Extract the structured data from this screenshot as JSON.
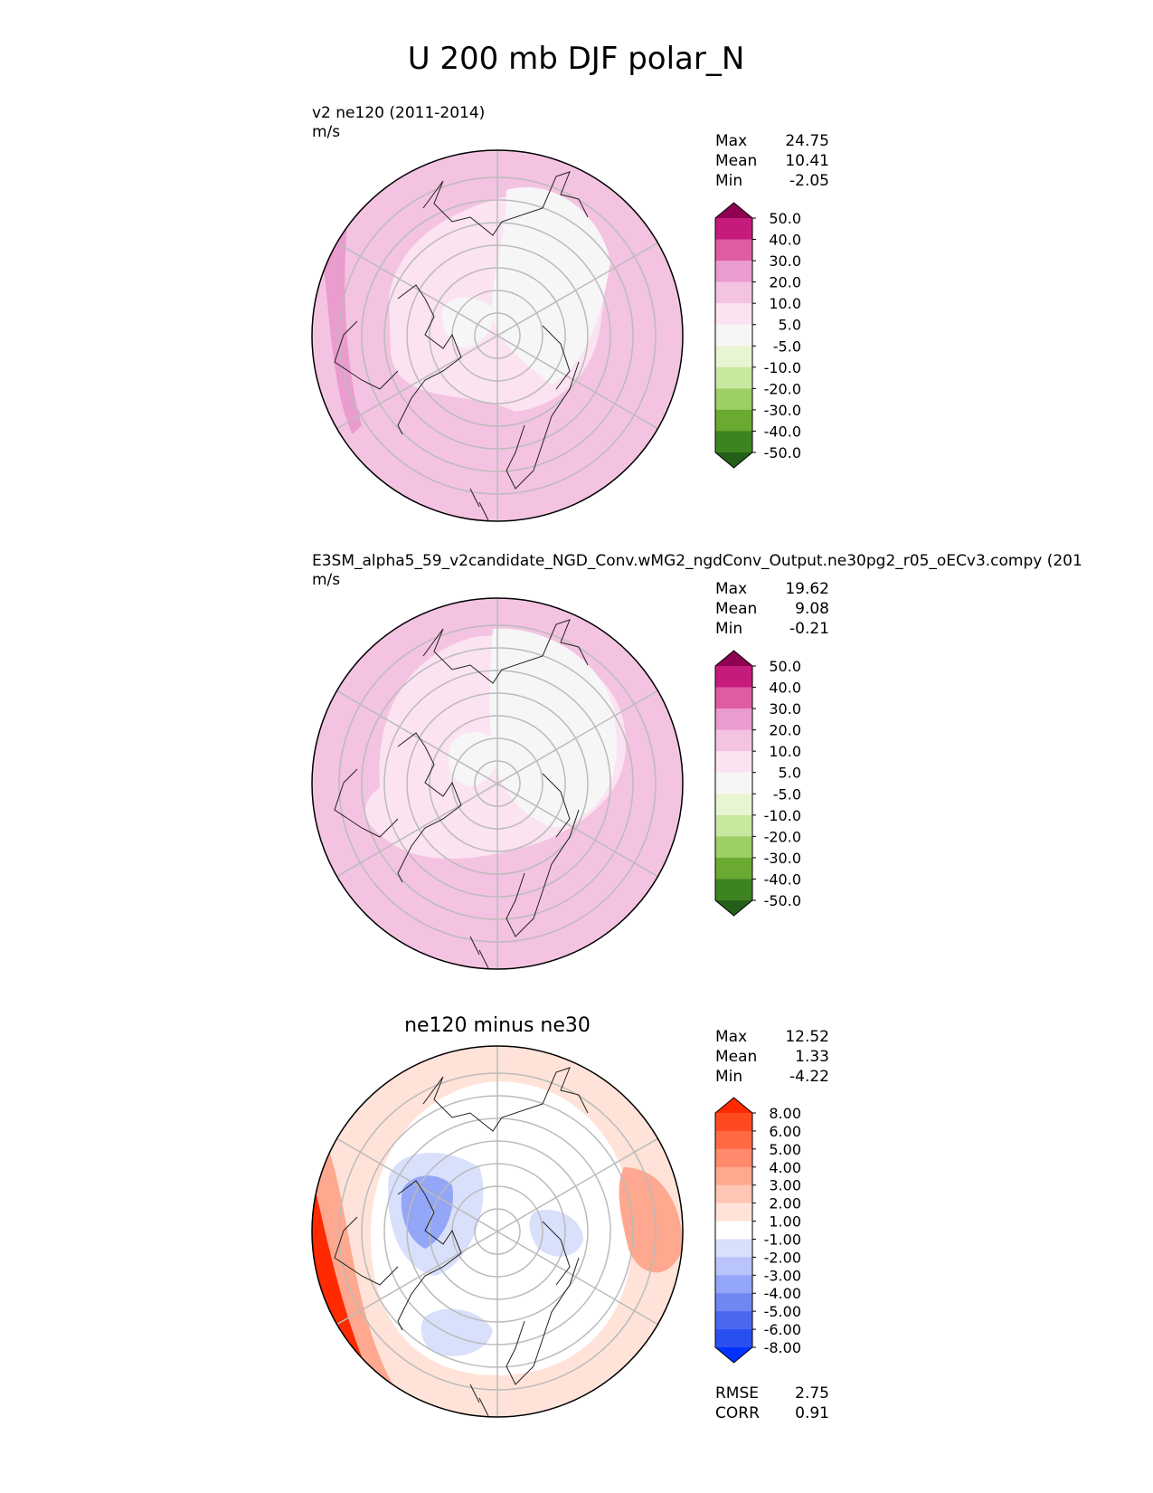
{
  "figure": {
    "title": "U 200 mb DJF polar_N"
  },
  "chart_data": [
    {
      "type": "heatmap",
      "projection": "north-polar-stereographic",
      "title_line1": "v2 ne120 (2011-2014)",
      "units": "m/s",
      "stats": [
        {
          "label": "Max",
          "value": "24.75"
        },
        {
          "label": "Mean",
          "value": "10.41"
        },
        {
          "label": "Min",
          "value": "-2.05"
        }
      ],
      "colorbar": {
        "levels": [
          "50.0",
          "40.0",
          "30.0",
          "20.0",
          "10.0",
          "5.0",
          "-5.0",
          "-10.0",
          "-20.0",
          "-30.0",
          "-40.0",
          "-50.0"
        ],
        "colors": [
          "#8e0152",
          "#c51b7d",
          "#de5ca2",
          "#ea9cce",
          "#f4c3e2",
          "#fbe3f1",
          "#f6f6f6",
          "#e8f5d2",
          "#c8e8a0",
          "#9ccf66",
          "#6aa932",
          "#3d8420",
          "#246019"
        ]
      },
      "field": {
        "background": "#f4c3e2",
        "regions": [
          {
            "level": "20.0",
            "color": "#ea9cce",
            "shape": "west-rim"
          },
          {
            "level": "5.0",
            "color": "#fbe3f1",
            "shape": "inner-ring"
          },
          {
            "level": "-5.0",
            "color": "#f6f6f6",
            "shape": "northeast-blob"
          }
        ]
      }
    },
    {
      "type": "heatmap",
      "projection": "north-polar-stereographic",
      "title_line1": "E3SM_alpha5_59_v2candidate_NGD_Conv.wMG2_ngdConv_Output.ne30pg2_r05_oECv3.compy (201",
      "units": "m/s",
      "stats": [
        {
          "label": "Max",
          "value": "19.62"
        },
        {
          "label": "Mean",
          "value": "9.08"
        },
        {
          "label": "Min",
          "value": "-0.21"
        }
      ],
      "colorbar": {
        "levels": [
          "50.0",
          "40.0",
          "30.0",
          "20.0",
          "10.0",
          "5.0",
          "-5.0",
          "-10.0",
          "-20.0",
          "-30.0",
          "-40.0",
          "-50.0"
        ],
        "colors": [
          "#8e0152",
          "#c51b7d",
          "#de5ca2",
          "#ea9cce",
          "#f4c3e2",
          "#fbe3f1",
          "#f6f6f6",
          "#e8f5d2",
          "#c8e8a0",
          "#9ccf66",
          "#6aa932",
          "#3d8420",
          "#246019"
        ]
      },
      "field": {
        "background": "#f4c3e2",
        "regions": [
          {
            "level": "5.0",
            "color": "#fbe3f1",
            "shape": "inner-ring"
          },
          {
            "level": "-5.0",
            "color": "#f6f6f6",
            "shape": "northeast-blob"
          }
        ]
      }
    },
    {
      "type": "heatmap",
      "projection": "north-polar-stereographic",
      "title_center": "ne120 minus ne30",
      "stats": [
        {
          "label": "Max",
          "value": "12.52"
        },
        {
          "label": "Mean",
          "value": "1.33"
        },
        {
          "label": "Min",
          "value": "-4.22"
        }
      ],
      "metrics": [
        {
          "label": "RMSE",
          "value": "2.75"
        },
        {
          "label": "CORR",
          "value": "0.91"
        }
      ],
      "colorbar": {
        "levels": [
          "8.00",
          "6.00",
          "5.00",
          "4.00",
          "3.00",
          "2.00",
          "1.00",
          "-1.00",
          "-2.00",
          "-3.00",
          "-4.00",
          "-5.00",
          "-6.00",
          "-8.00"
        ],
        "colors": [
          "#ff2a00",
          "#ff4a1f",
          "#ff6a44",
          "#ff8a6c",
          "#ffa890",
          "#ffc6b4",
          "#ffe3d9",
          "#ffffff",
          "#d9e0fb",
          "#b8c4fa",
          "#93a6f7",
          "#6e87f3",
          "#4a68ef",
          "#2a4ff0",
          "#0033ff"
        ]
      },
      "field": {
        "background": "#ffffff",
        "regions": [
          {
            "level": "1.00",
            "color": "#ffe3d9",
            "shape": "outer-band"
          },
          {
            "level": "3.00",
            "color": "#ffa890",
            "shape": "west-rim"
          },
          {
            "level": "8.00",
            "color": "#ff2a00",
            "shape": "southwest-rim"
          },
          {
            "level": "3.00",
            "color": "#ffa890",
            "shape": "east-blob"
          },
          {
            "level": "-2.00",
            "color": "#d9e0fb",
            "shape": "greenland-blob"
          },
          {
            "level": "-4.00",
            "color": "#93a6f7",
            "shape": "greenland-core"
          },
          {
            "level": "-1.00",
            "color": "#d9e0fb",
            "shape": "south-blob"
          }
        ]
      }
    }
  ]
}
